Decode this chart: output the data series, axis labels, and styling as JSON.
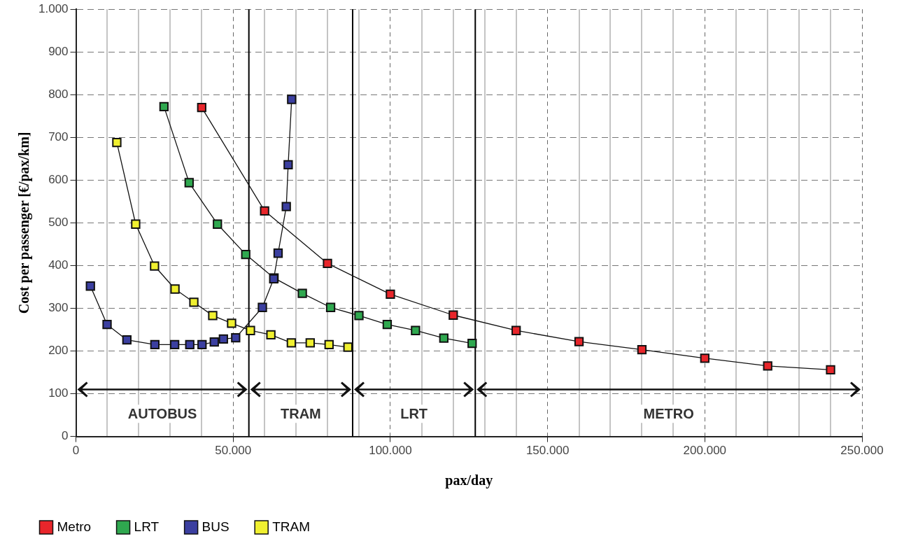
{
  "chart_data": {
    "type": "line",
    "xlabel": "pax/day",
    "ylabel": "Cost per passenger [€/pax/km]",
    "xlim": [
      0,
      250000
    ],
    "ylim": [
      0,
      1000
    ],
    "xticks": [
      0,
      {
        "value": 10000,
        "label": null
      },
      {
        "value": 20000,
        "label": null
      },
      {
        "value": 30000,
        "label": null
      },
      {
        "value": 40000,
        "label": null
      },
      {
        "value": 50000,
        "label": "50.000"
      },
      {
        "value": 60000,
        "label": null
      },
      {
        "value": 70000,
        "label": null
      },
      {
        "value": 80000,
        "label": null
      },
      {
        "value": 90000,
        "label": null
      },
      {
        "value": 100000,
        "label": "100.000"
      },
      {
        "value": 110000,
        "label": null
      },
      {
        "value": 120000,
        "label": null
      },
      {
        "value": 130000,
        "label": null
      },
      {
        "value": 140000,
        "label": null
      },
      {
        "value": 150000,
        "label": "150.000"
      },
      {
        "value": 160000,
        "label": null
      },
      {
        "value": 170000,
        "label": null
      },
      {
        "value": 180000,
        "label": null
      },
      {
        "value": 190000,
        "label": null
      },
      {
        "value": 200000,
        "label": "200.000"
      },
      {
        "value": 210000,
        "label": null
      },
      {
        "value": 220000,
        "label": null
      },
      {
        "value": 230000,
        "label": null
      },
      {
        "value": 240000,
        "label": null
      },
      {
        "value": 250000,
        "label": "250.000"
      }
    ],
    "yticks": [
      0,
      100,
      200,
      300,
      400,
      500,
      600,
      700,
      800,
      900,
      {
        "value": 1000,
        "label": "1.000"
      }
    ],
    "grid": true,
    "legend": "bottom",
    "marker": "square",
    "line_style": "solid",
    "series": [
      {
        "name": "Metro",
        "color": "#e8262b",
        "x": [
          40000,
          60000,
          80000,
          100000,
          120000,
          140000,
          160000,
          180000,
          200000,
          220000,
          240000
        ],
        "values": [
          770,
          528,
          405,
          333,
          284,
          248,
          222,
          203,
          183,
          165,
          156
        ]
      },
      {
        "name": "LRT",
        "color": "#2fa84f",
        "x": [
          28000,
          36000,
          45000,
          54000,
          63000,
          72000,
          81000,
          90000,
          99000,
          108000,
          117000,
          126000
        ],
        "values": [
          772,
          594,
          497,
          426,
          371,
          335,
          302,
          283,
          262,
          248,
          230,
          218
        ]
      },
      {
        "name": "BUS",
        "color": "#3b3fa0",
        "x": [
          4600,
          9900,
          16200,
          25100,
          31400,
          36200,
          40100,
          44000,
          46900,
          50800,
          59300,
          62900,
          64300,
          66900,
          67500,
          68600
        ],
        "values": [
          352,
          262,
          226,
          215,
          215,
          215,
          215,
          221,
          228,
          231,
          302,
          369,
          429,
          538,
          636,
          789
        ]
      },
      {
        "name": "TRAM",
        "color": "#f0f030",
        "x": [
          13000,
          19000,
          25000,
          31500,
          37500,
          43500,
          49500,
          55500,
          62000,
          68500,
          74500,
          80500,
          86500
        ],
        "values": [
          688,
          497,
          399,
          345,
          314,
          283,
          265,
          248,
          238,
          219,
          219,
          215,
          209
        ]
      }
    ],
    "ref_lines": [
      {
        "axis": "x",
        "value": 55000,
        "color": "#000000"
      },
      {
        "axis": "x",
        "value": 88000,
        "color": "#000000"
      },
      {
        "axis": "x",
        "value": 127000,
        "color": "#000000"
      }
    ],
    "annotations": [
      "AUTOBUS",
      "TRAM",
      "LRT",
      "METRO"
    ]
  }
}
